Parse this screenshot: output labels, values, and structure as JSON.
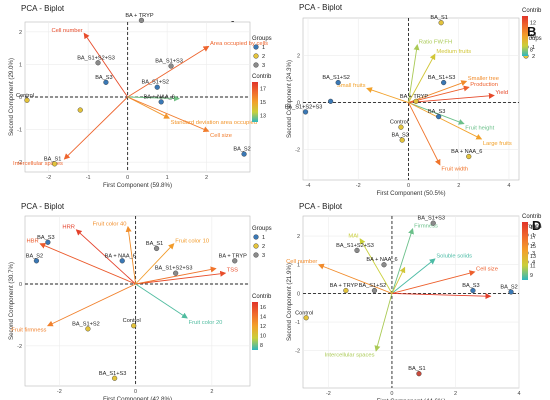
{
  "chart_data": [
    {
      "type": "scatter",
      "panel": "A",
      "title": "PCA - Biplot",
      "xlabel": "First Component (59.8%)",
      "ylabel": "Second Component (29.0%)",
      "xlim": [
        -2.6,
        3.1
      ],
      "ylim": [
        -2.3,
        2.3
      ],
      "x_ticks": [
        -2,
        -1,
        0,
        1,
        2
      ],
      "y_ticks": [
        -2,
        -1,
        0,
        1,
        2
      ],
      "legend_groups": {
        "title": "Groups",
        "items": [
          {
            "label": "1",
            "color": "#3a78b5"
          },
          {
            "label": "2",
            "color": "#e3c33c"
          },
          {
            "label": "3",
            "color": "#8a8a8a"
          }
        ]
      },
      "legend_contrib": {
        "title": "Contrib",
        "ticks": [
          "17",
          "15",
          "13"
        ]
      },
      "points": [
        {
          "label": "BA + TRYP",
          "x": 0.35,
          "y": 2.35,
          "group": 3
        },
        {
          "label": "BA_S1+S2+S3",
          "x": -0.75,
          "y": 1.05,
          "group": 3
        },
        {
          "label": "BA_S1+S3",
          "x": 1.1,
          "y": 0.95,
          "group": 3
        },
        {
          "label": "BA_S3",
          "x": -0.55,
          "y": 0.45,
          "group": 1
        },
        {
          "label": "Control",
          "x": -2.55,
          "y": -0.1,
          "group": 2
        },
        {
          "label": "BA_S1+S2",
          "x": 0.75,
          "y": 0.3,
          "group": 1
        },
        {
          "label": "BA + NAA_6",
          "x": 0.85,
          "y": -0.15,
          "group": 1
        },
        {
          "label": "",
          "x": -1.2,
          "y": -0.4,
          "group": 2
        },
        {
          "label": "BA_S2",
          "x": 2.95,
          "y": -1.75,
          "group": 1
        },
        {
          "label": "BA_S1",
          "x": -1.85,
          "y": -2.05,
          "group": 2
        }
      ],
      "loadings": [
        {
          "label": "Cell number",
          "x": -1.1,
          "y": 1.95,
          "contrib": 16.5
        },
        {
          "label": "Area occupied by cells",
          "x": 2.05,
          "y": 1.55,
          "contrib": 16.0
        },
        {
          "label": "Standard deviation area occupied",
          "x": 1.05,
          "y": -0.65,
          "contrib": 15.0
        },
        {
          "label": "Cell size",
          "x": 2.05,
          "y": -1.05,
          "contrib": 15.5
        },
        {
          "label": "Intercellular spaces",
          "x": -1.6,
          "y": -1.9,
          "contrib": 16.0
        },
        {
          "label": "",
          "x": 1.3,
          "y": -0.05,
          "contrib": 13.0
        }
      ]
    },
    {
      "type": "scatter",
      "panel": "B",
      "title": "PCA - Biplot",
      "xlabel": "First Component (50.5%)",
      "ylabel": "Second Component (24.3%)",
      "xlim": [
        -4.2,
        4.4
      ],
      "ylim": [
        -3.3,
        3.6
      ],
      "x_ticks": [
        -4,
        -2,
        0,
        2,
        4
      ],
      "y_ticks": [
        -2,
        0,
        2
      ],
      "legend_groups": {
        "title": "Groups",
        "items": [
          {
            "label": "1",
            "color": "#3a78b5"
          },
          {
            "label": "2",
            "color": "#e3c33c"
          }
        ]
      },
      "legend_contrib": {
        "title": "Contrib",
        "ticks": [
          "12",
          "10",
          "8"
        ]
      },
      "points": [
        {
          "label": "BA_S1",
          "x": 1.3,
          "y": 3.4,
          "group": 2
        },
        {
          "label": "BA_S1+S2",
          "x": -2.8,
          "y": 0.85,
          "group": 1
        },
        {
          "label": "BA_S1+S2+S3",
          "x": -4.1,
          "y": -0.4,
          "group": 1
        },
        {
          "label": "",
          "x": -3.1,
          "y": 0.05,
          "group": 1
        },
        {
          "label": "BA_S1+S3",
          "x": 1.4,
          "y": 0.85,
          "group": 1
        },
        {
          "label": "BA + TRYP",
          "x": 0.3,
          "y": 0.05,
          "group": 2
        },
        {
          "label": "BA_S3",
          "x": 1.2,
          "y": -0.6,
          "group": 1
        },
        {
          "label": "Control",
          "x": -0.3,
          "y": -1.05,
          "group": 2
        },
        {
          "label": "BA_S2",
          "x": -0.25,
          "y": -1.6,
          "group": 2
        },
        {
          "label": "BA + NAA_6",
          "x": 2.4,
          "y": -2.3,
          "group": 2
        }
      ],
      "loadings": [
        {
          "label": "Ratio FW:FH",
          "x": 0.35,
          "y": 2.45,
          "contrib": 9.0
        },
        {
          "label": "Medium fruits",
          "x": 1.05,
          "y": 2.05,
          "contrib": 9.5
        },
        {
          "label": "Smaller tree",
          "x": 2.3,
          "y": 0.9,
          "contrib": 11.0
        },
        {
          "label": "Production",
          "x": 2.4,
          "y": 0.65,
          "contrib": 12.0
        },
        {
          "label": "Yield",
          "x": 3.4,
          "y": 0.3,
          "contrib": 12.5
        },
        {
          "label": "Small fruits",
          "x": -1.65,
          "y": 0.6,
          "contrib": 10.5
        },
        {
          "label": "Fruit height",
          "x": 2.2,
          "y": -0.9,
          "contrib": 8.5
        },
        {
          "label": "Large fruits",
          "x": 2.9,
          "y": -1.55,
          "contrib": 10.5
        },
        {
          "label": "Fruit width",
          "x": 1.25,
          "y": -2.65,
          "contrib": 11.5
        }
      ]
    },
    {
      "type": "scatter",
      "panel": "C",
      "title": "PCA - Biplot",
      "xlabel": "First Component (42.8%)",
      "ylabel": "Second Component (30.7%)",
      "xlim": [
        -2.9,
        3.0
      ],
      "ylim": [
        -3.3,
        2.2
      ],
      "x_ticks": [
        -2,
        0,
        2
      ],
      "y_ticks": [
        -2,
        0
      ],
      "legend_groups": {
        "title": "Groups",
        "items": [
          {
            "label": "1",
            "color": "#3a78b5"
          },
          {
            "label": "2",
            "color": "#e3c33c"
          },
          {
            "label": "3",
            "color": "#8a8a8a"
          }
        ]
      },
      "legend_contrib": {
        "title": "Contrib",
        "ticks": [
          "16",
          "14",
          "12",
          "10",
          "8"
        ]
      },
      "points": [
        {
          "label": "BA_S3",
          "x": -2.3,
          "y": 1.35,
          "group": 1
        },
        {
          "label": "BA_S2",
          "x": -2.6,
          "y": 0.75,
          "group": 1
        },
        {
          "label": "BA_S1",
          "x": 0.55,
          "y": 1.15,
          "group": 3
        },
        {
          "label": "BA + NAA_6",
          "x": -0.35,
          "y": 0.75,
          "group": 1
        },
        {
          "label": "BA + TRYP",
          "x": 2.6,
          "y": 0.75,
          "group": 3
        },
        {
          "label": "BA_S1+S2+S3",
          "x": 1.05,
          "y": 0.35,
          "group": 3
        },
        {
          "label": "Control",
          "x": -0.05,
          "y": -1.35,
          "group": 2
        },
        {
          "label": "BA_S1+S2",
          "x": -1.25,
          "y": -1.45,
          "group": 2
        },
        {
          "label": "BA_S1+S3",
          "x": -0.55,
          "y": -3.05,
          "group": 2
        }
      ],
      "loadings": [
        {
          "label": "HRR",
          "x": -1.55,
          "y": 1.75,
          "contrib": 16.0
        },
        {
          "label": "HBR",
          "x": -2.5,
          "y": 1.3,
          "contrib": 15.0
        },
        {
          "label": "Fruit color 40",
          "x": -0.2,
          "y": 1.85,
          "contrib": 13.0
        },
        {
          "label": "Fruit color 10",
          "x": 1.0,
          "y": 1.3,
          "contrib": 12.5
        },
        {
          "label": "TSS",
          "x": 2.35,
          "y": 0.35,
          "contrib": 15.5
        },
        {
          "label": "",
          "x": 2.1,
          "y": 0.5,
          "contrib": 14.0
        },
        {
          "label": "Fruit color 20",
          "x": 1.35,
          "y": -1.1,
          "contrib": 8.5
        },
        {
          "label": "Fruit firmness",
          "x": -2.3,
          "y": -1.35,
          "contrib": 13.5
        }
      ]
    },
    {
      "type": "scatter",
      "panel": "D",
      "title": "PCA - Biplot",
      "xlabel": "First Component (44.6%)",
      "ylabel": "Second Component (21.9%)",
      "xlim": [
        -2.8,
        4.0
      ],
      "ylim": [
        -3.3,
        2.7
      ],
      "x_ticks": [
        -2,
        0,
        2,
        4
      ],
      "y_ticks": [
        -2,
        -1,
        0,
        1,
        2
      ],
      "legend_groups": {
        "title": "Groups",
        "items": [
          {
            "label": "1",
            "color": "#3a78b5"
          },
          {
            "label": "2",
            "color": "#e3c33c"
          },
          {
            "label": "3",
            "color": "#8a8a8a"
          },
          {
            "label": "4",
            "color": "#c84a3c"
          }
        ]
      },
      "legend_contrib": {
        "title": "Contrib",
        "ticks": [
          "19",
          "17",
          "15",
          "13",
          "11",
          "9"
        ]
      },
      "points": [
        {
          "label": "BA_S1+S3",
          "x": 1.3,
          "y": 2.45,
          "group": 3
        },
        {
          "label": "BA_S1+S2+S3",
          "x": -1.1,
          "y": 1.5,
          "group": 3
        },
        {
          "label": "BA + NAA_6",
          "x": -0.25,
          "y": 1.0,
          "group": 3
        },
        {
          "label": "BA_S1+S2",
          "x": -0.55,
          "y": 0.1,
          "group": 3
        },
        {
          "label": "BA + TRYP",
          "x": -1.45,
          "y": 0.1,
          "group": 2
        },
        {
          "label": "BA_S2",
          "x": 3.75,
          "y": 0.05,
          "group": 1
        },
        {
          "label": "BA_S3",
          "x": 2.55,
          "y": 0.1,
          "group": 1
        },
        {
          "label": "Control",
          "x": -2.7,
          "y": -0.85,
          "group": 2
        },
        {
          "label": "BA_S1",
          "x": 0.85,
          "y": -2.8,
          "group": 4
        }
      ],
      "loadings": [
        {
          "label": "Firmness",
          "x": 0.65,
          "y": 2.25,
          "contrib": 10.0
        },
        {
          "label": "MAI",
          "x": -1.0,
          "y": 1.9,
          "contrib": 11.5
        },
        {
          "label": "Soluble solids",
          "x": 1.35,
          "y": 1.2,
          "contrib": 9.5
        },
        {
          "label": "Cell number",
          "x": -2.3,
          "y": 1.0,
          "contrib": 15.0
        },
        {
          "label": "Cell size",
          "x": 2.6,
          "y": 0.75,
          "contrib": 17.0
        },
        {
          "label": "",
          "x": 3.1,
          "y": -0.1,
          "contrib": 18.5
        },
        {
          "label": "Intercellular spaces",
          "x": -0.5,
          "y": -2.0,
          "contrib": 11.0
        },
        {
          "label": "",
          "x": 0.4,
          "y": 0.9,
          "contrib": 12.0
        }
      ]
    }
  ],
  "panels_meta": [
    {
      "letter": "A",
      "tick_fmt": "int"
    },
    {
      "letter": "B",
      "tick_fmt": "int"
    },
    {
      "letter": "C",
      "tick_fmt": "int"
    },
    {
      "letter": "D",
      "tick_fmt": "int"
    }
  ]
}
